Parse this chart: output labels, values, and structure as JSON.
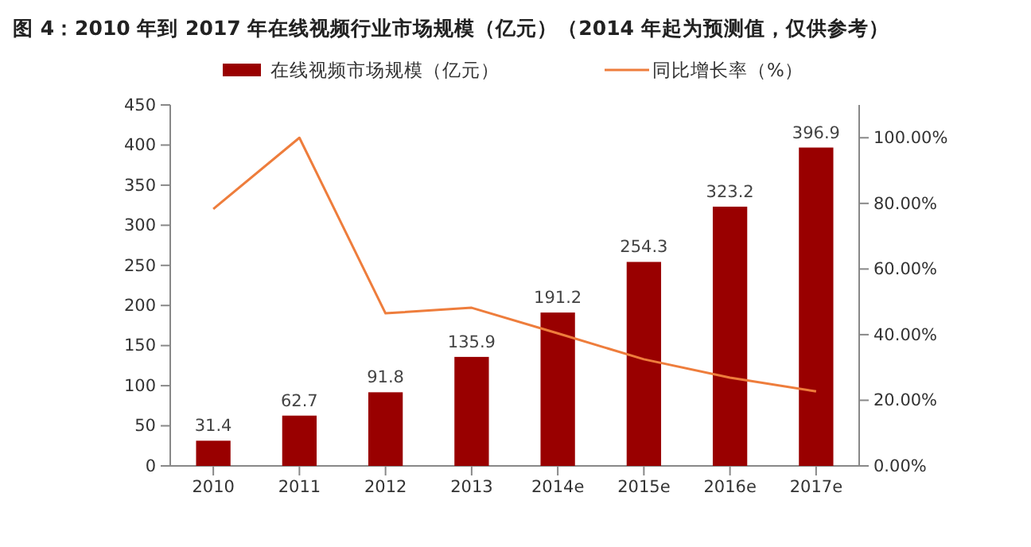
{
  "chart_data": {
    "type": "bar",
    "title": "图 4：2010 年到 2017 年在线视频行业市场规模（亿元）（2014 年起为预测值，仅供参考）",
    "categories": [
      "2010",
      "2011",
      "2012",
      "2013",
      "2014e",
      "2015e",
      "2016e",
      "2017e"
    ],
    "series": [
      {
        "name": "在线视频市场规模（亿元）",
        "color": "#990000",
        "values": [
          31.4,
          62.7,
          91.8,
          135.9,
          191.2,
          254.3,
          323.2,
          396.9
        ]
      },
      {
        "name": "同比增长率（%）",
        "type": "line",
        "axis": "y2",
        "color": "#ee7d3c",
        "values": [
          78.3,
          100,
          46.5,
          48.2,
          40.4,
          32.5,
          26.9,
          22.7
        ]
      }
    ],
    "ylim": [
      0,
      450
    ],
    "yticks": [
      0,
      50,
      100,
      150,
      200,
      250,
      300,
      350,
      400,
      450
    ],
    "y2lim": [
      0,
      110
    ],
    "y2ticks": [
      {
        "value": 0,
        "label": "0.00%"
      },
      {
        "value": 20,
        "label": "20.00%"
      },
      {
        "value": 40,
        "label": "40.00%"
      },
      {
        "value": 60,
        "label": "60.00%"
      },
      {
        "value": 80,
        "label": "80.00%"
      },
      {
        "value": 100,
        "label": "100.00%"
      }
    ],
    "value_labels": [
      "31.4",
      "62.7",
      "91.8",
      "135.9",
      "191.2",
      "254.3",
      "323.2",
      "396.9"
    ],
    "legend": "top",
    "grid": false
  }
}
